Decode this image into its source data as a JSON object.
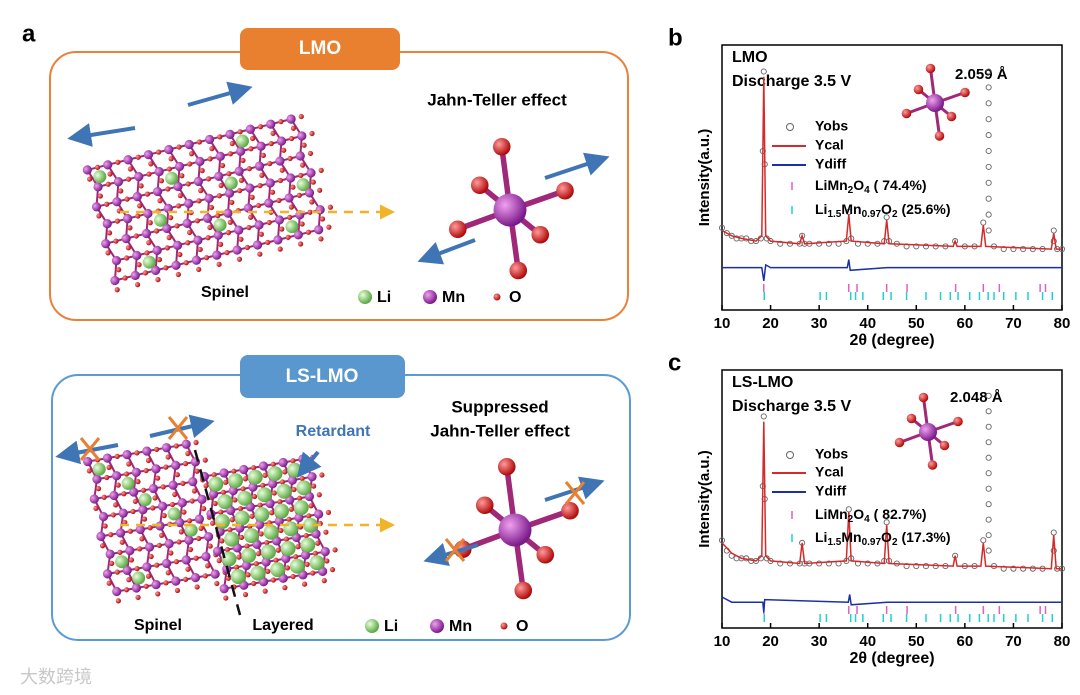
{
  "panel_a": {
    "label": "a",
    "lmo": {
      "tab": "LMO",
      "effect": [
        "Jahn-Teller effect"
      ],
      "structure": "Spinel"
    },
    "ls_lmo": {
      "tab": "LS-LMO",
      "effect": [
        "Suppressed",
        "Jahn-Teller effect"
      ],
      "annotation": "Retardant",
      "structures": [
        "Spinel",
        "Layered"
      ]
    },
    "atom_legend": [
      "Li",
      "Mn",
      "O"
    ]
  },
  "watermark": "大数跨境",
  "chart_data": [
    {
      "type": "xrd",
      "panel_label": "b",
      "title": [
        "LMO",
        "Discharge 3.5 V"
      ],
      "bond_length": "2.059 Å",
      "xlabel": "2θ (degree)",
      "ylabel": "Intensity(a.u.)",
      "xlim": [
        10,
        80
      ],
      "xticks": [
        10,
        20,
        30,
        40,
        50,
        60,
        70,
        80
      ],
      "ylim": [
        0,
        100
      ],
      "series": [
        {
          "name": "Yobs",
          "marker": "circle",
          "color": "#666666",
          "x": [
            10,
            11,
            12,
            13,
            14,
            15,
            16,
            17,
            18,
            18.4,
            18.6,
            18.8,
            19.2,
            20,
            22,
            24,
            26,
            26.5,
            27,
            28,
            30,
            32,
            34,
            35.6,
            36.1,
            36.6,
            38,
            40,
            42,
            43.4,
            43.9,
            44.4,
            46,
            48,
            50,
            52,
            54,
            56,
            58,
            60,
            62,
            63.8,
            64.9,
            64.9,
            64.9,
            64.9,
            64.9,
            64.9,
            64.9,
            64.9,
            64.9,
            64.9,
            64.9,
            66,
            68,
            70,
            72,
            74,
            76,
            78.3,
            78.3,
            79,
            80
          ],
          "values": [
            31,
            29,
            28,
            27,
            27,
            27,
            26,
            26,
            27,
            60,
            90,
            55,
            27,
            26,
            25,
            25,
            25,
            28,
            25,
            25,
            25,
            25,
            25,
            26,
            37,
            27,
            25,
            25,
            25,
            26,
            35,
            26,
            25,
            24,
            24,
            24,
            24,
            24,
            26,
            24,
            24,
            33,
            30,
            36,
            42,
            48,
            54,
            60,
            66,
            72,
            78,
            84,
            90,
            24,
            23,
            23,
            23,
            23,
            23,
            30,
            26,
            23,
            23
          ]
        },
        {
          "name": "Ycal",
          "marker": "line",
          "color": "#d42a2a",
          "x": [
            10,
            12,
            14,
            17,
            18.2,
            18.6,
            19,
            20,
            26,
            26.5,
            27,
            35.6,
            36.1,
            36.6,
            43.4,
            43.9,
            44.4,
            57.6,
            58,
            58.4,
            63.3,
            63.8,
            64.3,
            77.8,
            78.3,
            78.8,
            80
          ],
          "values": [
            30,
            28,
            27,
            26,
            28,
            88,
            28,
            26,
            25,
            28,
            25,
            26,
            36,
            26,
            25,
            34,
            25,
            24,
            26,
            24,
            24,
            32,
            24,
            23,
            29,
            23,
            23
          ]
        },
        {
          "name": "Ydiff",
          "marker": "line",
          "color": "#1c2fa8",
          "x": [
            10,
            18.2,
            18.6,
            19,
            20,
            35.8,
            36.1,
            36.4,
            44,
            80
          ],
          "values": [
            16,
            16,
            11,
            17,
            16,
            16,
            19,
            15,
            16,
            16
          ]
        }
      ],
      "phases": [
        {
          "name": [
            "LiMn",
            "2",
            "O",
            "4"
          ],
          "fraction": "( 74.4%)",
          "color": "#e060c0",
          "positions": [
            18.6,
            36.1,
            37.8,
            43.9,
            48.1,
            58.1,
            63.8,
            67.1,
            75.5,
            76.6
          ]
        },
        {
          "name": [
            "Li",
            "1.5",
            "Mn",
            "0.97",
            "O",
            "2"
          ],
          "fraction": "(25.6%)",
          "color": "#20d0d0",
          "positions": [
            18.7,
            30.2,
            31.5,
            36.5,
            37.5,
            39,
            43.2,
            44.8,
            48,
            52,
            55,
            57,
            58.6,
            61,
            63,
            64.8,
            66,
            68,
            70.5,
            73,
            76,
            78
          ]
        }
      ]
    },
    {
      "type": "xrd",
      "panel_label": "c",
      "title": [
        "LS-LMO",
        "Discharge 3.5 V"
      ],
      "bond_length": "2.048 Å",
      "xlabel": "2θ (degree)",
      "ylabel": "Intensity(a.u.)",
      "xlim": [
        10,
        80
      ],
      "xticks": [
        10,
        20,
        30,
        40,
        50,
        60,
        70,
        80
      ],
      "ylim": [
        0,
        100
      ],
      "series": [
        {
          "name": "Yobs",
          "marker": "circle",
          "color": "#666666",
          "x": [
            10,
            11,
            12,
            13,
            14,
            15,
            16,
            17,
            18,
            18.4,
            18.6,
            18.8,
            19.2,
            20,
            22,
            24,
            26,
            26.5,
            27,
            28,
            30,
            32,
            34,
            35.6,
            36.1,
            36.6,
            38,
            40,
            42,
            43.4,
            43.9,
            44.4,
            46,
            48,
            50,
            52,
            54,
            56,
            58,
            60,
            62,
            63.8,
            64.9,
            64.9,
            64.9,
            64.9,
            64.9,
            64.9,
            64.9,
            64.9,
            64.9,
            64.9,
            64.9,
            66,
            68,
            70,
            72,
            74,
            76,
            78.3,
            78.3,
            79,
            80
          ],
          "values": [
            34,
            30,
            28,
            27,
            27,
            27,
            26,
            26,
            27,
            55,
            82,
            50,
            27,
            26,
            25,
            25,
            25,
            33,
            25,
            25,
            25,
            25,
            25,
            26,
            46,
            27,
            25,
            25,
            25,
            26,
            41,
            26,
            25,
            24,
            24,
            24,
            24,
            24,
            28,
            24,
            24,
            34,
            30,
            36,
            42,
            48,
            54,
            60,
            66,
            72,
            78,
            84,
            90,
            24,
            23,
            23,
            23,
            23,
            23,
            37,
            30,
            23,
            23
          ]
        },
        {
          "name": "Ycal",
          "marker": "line",
          "color": "#d42a2a",
          "x": [
            10,
            12,
            14,
            17,
            18.2,
            18.6,
            19,
            20,
            26,
            26.5,
            27,
            35.6,
            36.1,
            36.6,
            43.4,
            43.9,
            44.4,
            57.6,
            58,
            58.4,
            63.3,
            63.8,
            64.3,
            77.8,
            78.3,
            78.8,
            80
          ],
          "values": [
            33,
            29,
            27,
            26,
            28,
            80,
            28,
            26,
            25,
            33,
            25,
            26,
            45,
            26,
            25,
            40,
            25,
            24,
            28,
            24,
            24,
            33,
            24,
            23,
            36,
            23,
            23
          ]
        },
        {
          "name": "Ydiff",
          "marker": "line",
          "color": "#1c2fa8",
          "x": [
            10,
            12,
            18.4,
            18.6,
            18.8,
            36,
            36.3,
            36.6,
            44,
            80
          ],
          "values": [
            12,
            10,
            10,
            6,
            11,
            10,
            13,
            9,
            10,
            10
          ]
        }
      ],
      "phases": [
        {
          "name": [
            "LiMn",
            "2",
            "O",
            "4"
          ],
          "fraction": "( 82.7%)",
          "color": "#e060c0",
          "positions": [
            18.6,
            36.1,
            37.8,
            43.9,
            48.1,
            58.1,
            63.8,
            67.1,
            75.5,
            76.6
          ]
        },
        {
          "name": [
            "Li",
            "1.5",
            "Mn",
            "0.97",
            "O",
            "2"
          ],
          "fraction": "(17.3%)",
          "color": "#20d0d0",
          "positions": [
            18.7,
            30.2,
            31.5,
            36.5,
            37.5,
            39,
            43.2,
            44.8,
            48,
            52,
            55,
            57,
            58.6,
            61,
            63,
            64.8,
            66,
            68,
            70.5,
            73,
            76,
            78
          ]
        }
      ]
    }
  ]
}
